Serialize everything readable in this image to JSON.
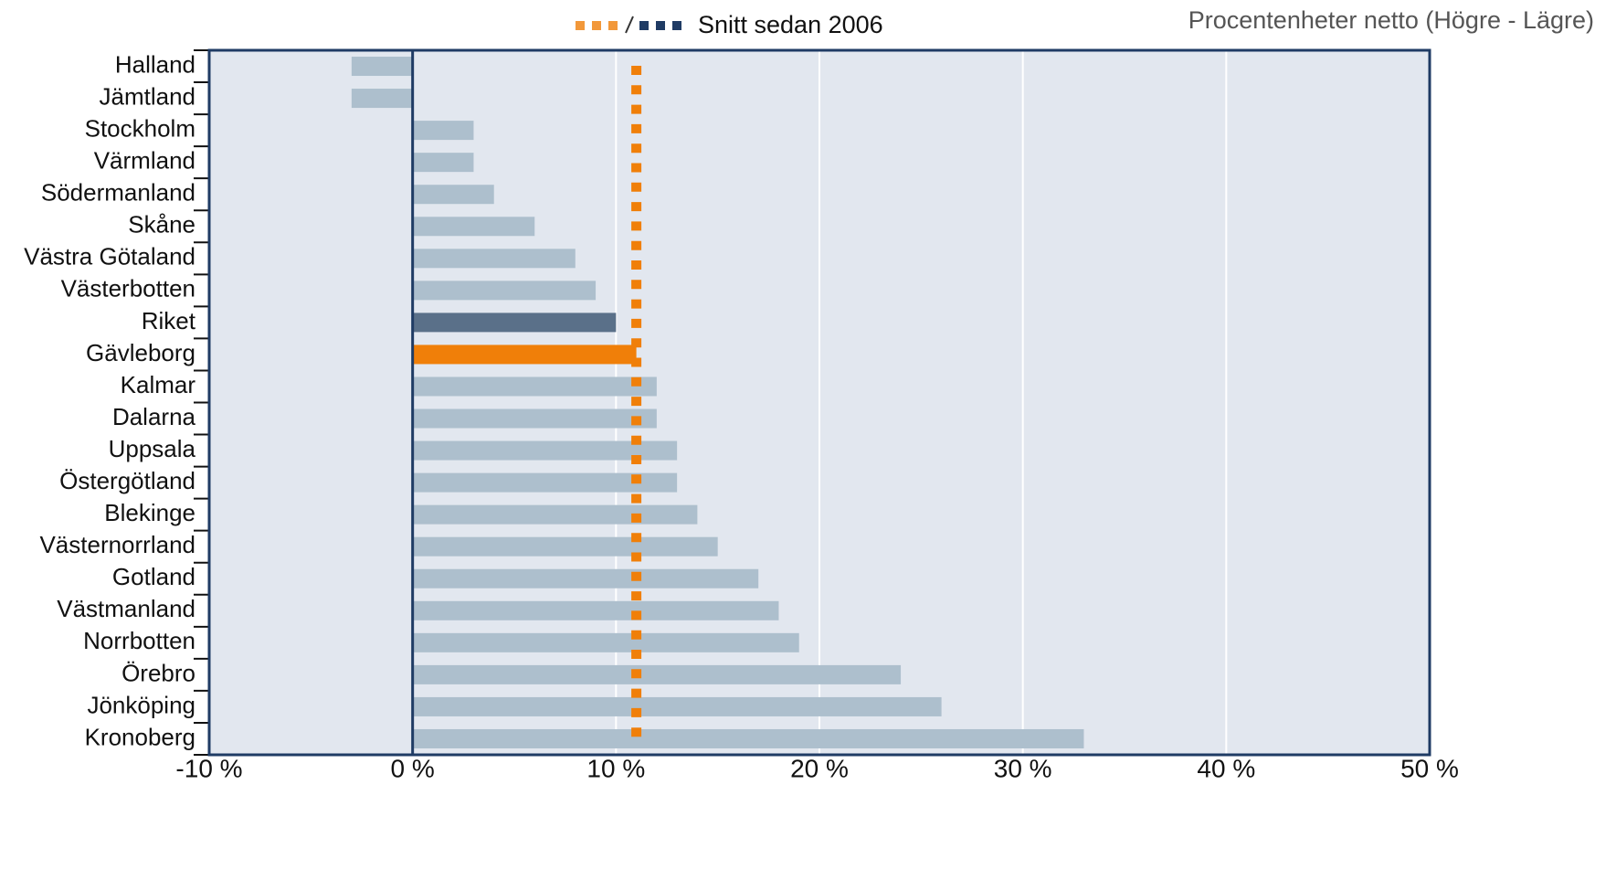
{
  "chart_data": {
    "type": "bar",
    "orientation": "horizontal",
    "subtitle": "Procentenheter netto (Högre - Lägre)",
    "categories": [
      "Halland",
      "Jämtland",
      "Stockholm",
      "Värmland",
      "Södermanland",
      "Skåne",
      "Västra Götaland",
      "Västerbotten",
      "Riket",
      "Gävleborg",
      "Kalmar",
      "Dalarna",
      "Uppsala",
      "Östergötland",
      "Blekinge",
      "Västernorrland",
      "Gotland",
      "Västmanland",
      "Norrbotten",
      "Örebro",
      "Jönköping",
      "Kronoberg"
    ],
    "values": [
      -3,
      -3,
      3,
      3,
      4,
      6,
      8,
      9,
      10,
      11,
      12,
      12,
      13,
      13,
      14,
      15,
      17,
      18,
      19,
      24,
      26,
      33
    ],
    "colors": [
      "#adbfcd",
      "#adbfcd",
      "#adbfcd",
      "#adbfcd",
      "#adbfcd",
      "#adbfcd",
      "#adbfcd",
      "#adbfcd",
      "#5a7089",
      "#f07f09",
      "#adbfcd",
      "#adbfcd",
      "#adbfcd",
      "#adbfcd",
      "#adbfcd",
      "#adbfcd",
      "#adbfcd",
      "#adbfcd",
      "#adbfcd",
      "#adbfcd",
      "#adbfcd",
      "#adbfcd"
    ],
    "average": {
      "name": "Snitt sedan 2006",
      "value": 11,
      "color": "#f07f09",
      "alt_color": "#1f3b64"
    },
    "xlim": [
      -10,
      50
    ],
    "xticks": [
      {
        "value": -10,
        "label": "-10 %"
      },
      {
        "value": 0,
        "label": "0 %"
      },
      {
        "value": 10,
        "label": "10 %"
      },
      {
        "value": 20,
        "label": "20 %"
      },
      {
        "value": 30,
        "label": "30 %"
      },
      {
        "value": 40,
        "label": "40 %"
      },
      {
        "value": 50,
        "label": "50 %"
      }
    ],
    "grid": true
  }
}
